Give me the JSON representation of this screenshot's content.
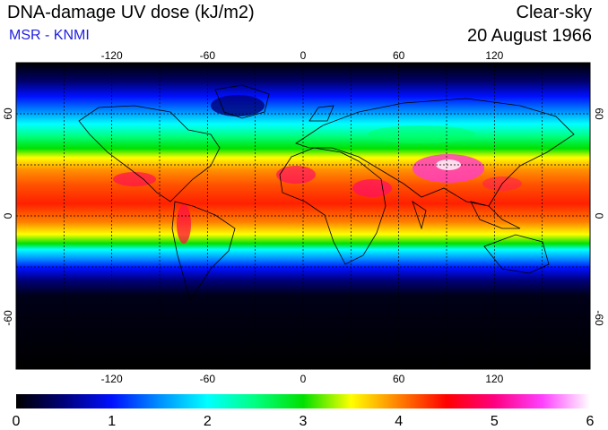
{
  "header": {
    "title": "DNA-damage UV dose (kJ/m2)",
    "subtitle": "MSR - KNMI",
    "condition": "Clear-sky",
    "date": "20 August 1966"
  },
  "map": {
    "lon_range": [
      -180,
      180
    ],
    "lat_range": [
      -90,
      90
    ],
    "lon_ticks": [
      -120,
      -60,
      0,
      60,
      120
    ],
    "lat_ticks": [
      60,
      0,
      -60
    ],
    "lon_tick_labels": [
      "-120",
      "-60",
      "0",
      "60",
      "120"
    ],
    "lat_tick_labels": [
      "60",
      "0",
      "-60"
    ],
    "grid_lines": "dotted, every 30 degrees"
  },
  "colorbar": {
    "min": 0,
    "max": 6,
    "tick_labels": [
      "0",
      "1",
      "2",
      "3",
      "4",
      "5",
      "6"
    ],
    "stops": [
      {
        "v": 0.0,
        "c": "#000000"
      },
      {
        "v": 0.5,
        "c": "#00007a"
      },
      {
        "v": 1.0,
        "c": "#0010ff"
      },
      {
        "v": 1.5,
        "c": "#0090ff"
      },
      {
        "v": 2.0,
        "c": "#00ffff"
      },
      {
        "v": 2.5,
        "c": "#00ff80"
      },
      {
        "v": 3.0,
        "c": "#00e000"
      },
      {
        "v": 3.5,
        "c": "#ffff00"
      },
      {
        "v": 4.0,
        "c": "#ff8000"
      },
      {
        "v": 4.5,
        "c": "#ff0000"
      },
      {
        "v": 5.0,
        "c": "#ff0080"
      },
      {
        "v": 5.5,
        "c": "#ff40ff"
      },
      {
        "v": 6.0,
        "c": "#ffffff"
      }
    ]
  }
}
